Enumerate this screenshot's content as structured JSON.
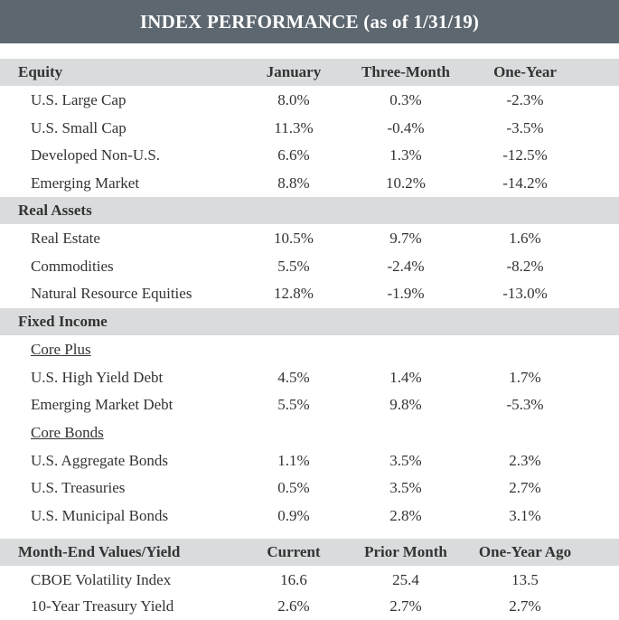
{
  "title": "INDEX PERFORMANCE (as of 1/31/19)",
  "equity": {
    "header": {
      "label": "Equity",
      "col1": "January",
      "col2": "Three-Month",
      "col3": "One-Year"
    },
    "rows": [
      {
        "name": "U.S. Large Cap",
        "c1": "8.0%",
        "c2": "0.3%",
        "c3": "-2.3%"
      },
      {
        "name": "U.S. Small Cap",
        "c1": "11.3%",
        "c2": "-0.4%",
        "c3": "-3.5%"
      },
      {
        "name": "Developed Non-U.S.",
        "c1": "6.6%",
        "c2": "1.3%",
        "c3": "-12.5%"
      },
      {
        "name": "Emerging Market",
        "c1": "8.8%",
        "c2": "10.2%",
        "c3": "-14.2%"
      }
    ]
  },
  "real_assets": {
    "header": {
      "label": "Real Assets"
    },
    "rows": [
      {
        "name": "Real Estate",
        "c1": "10.5%",
        "c2": "9.7%",
        "c3": "1.6%"
      },
      {
        "name": "Commodities",
        "c1": "5.5%",
        "c2": "-2.4%",
        "c3": "-8.2%"
      },
      {
        "name": "Natural Resource Equities",
        "c1": "12.8%",
        "c2": "-1.9%",
        "c3": "-13.0%"
      }
    ]
  },
  "fixed_income": {
    "header": {
      "label": "Fixed Income"
    },
    "core_plus": {
      "label": "Core Plus",
      "rows": [
        {
          "name": "U.S. High Yield Debt",
          "c1": "4.5%",
          "c2": "1.4%",
          "c3": "1.7%"
        },
        {
          "name": "Emerging Market Debt",
          "c1": "5.5%",
          "c2": "9.8%",
          "c3": "-5.3%"
        }
      ]
    },
    "core_bonds": {
      "label": "Core Bonds",
      "rows": [
        {
          "name": "U.S. Aggregate Bonds",
          "c1": "1.1%",
          "c2": "3.5%",
          "c3": "2.3%"
        },
        {
          "name": "U.S. Treasuries",
          "c1": "0.5%",
          "c2": "3.5%",
          "c3": "2.7%"
        },
        {
          "name": "U.S. Municipal Bonds",
          "c1": "0.9%",
          "c2": "2.8%",
          "c3": "3.1%"
        }
      ]
    }
  },
  "month_end": {
    "header": {
      "label": "Month-End Values/Yield",
      "col1": "Current",
      "col2": "Prior Month",
      "col3": "One-Year Ago"
    },
    "rows": [
      {
        "name": "CBOE Volatility Index",
        "c1": "16.6",
        "c2": "25.4",
        "c3": "13.5"
      },
      {
        "name": "10-Year Treasury Yield",
        "c1": "2.6%",
        "c2": "2.7%",
        "c3": "2.7%"
      }
    ]
  }
}
